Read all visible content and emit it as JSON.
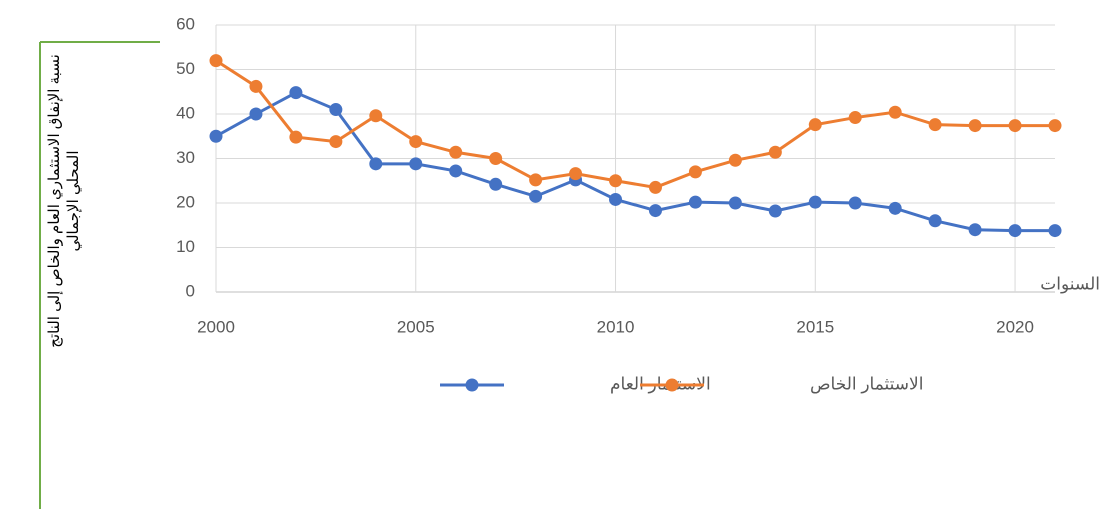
{
  "chart_data": {
    "type": "line",
    "ylabel": "نسبة الإنفاق الاستثماري العام والخاص إلى الناتج المحلي الإجمالي",
    "xlabel": "السنوات",
    "x": [
      2000,
      2001,
      2002,
      2003,
      2004,
      2005,
      2006,
      2007,
      2008,
      2009,
      2010,
      2011,
      2012,
      2013,
      2014,
      2015,
      2016,
      2017,
      2018,
      2019,
      2020,
      2021
    ],
    "series": [
      {
        "name": "الاستثمار العام",
        "color": "#4472c4",
        "values": [
          35,
          40,
          44.8,
          41,
          28.8,
          28.8,
          27.2,
          24.2,
          21.5,
          25.2,
          20.8,
          18.3,
          20.2,
          20,
          18.2,
          20.2,
          20,
          18.8,
          16,
          14,
          13.8,
          13.8
        ]
      },
      {
        "name": "الاستثمار الخاص",
        "color": "#ed7d31",
        "values": [
          52,
          46.2,
          34.8,
          33.8,
          39.6,
          33.8,
          31.4,
          30,
          25.2,
          26.6,
          25,
          23.5,
          27,
          29.6,
          31.4,
          37.6,
          39.2,
          40.4,
          37.6,
          37.4,
          37.4,
          37.4
        ]
      }
    ],
    "xlim": [
      2000,
      2021
    ],
    "xticks": [
      2000,
      2005,
      2010,
      2015,
      2020
    ],
    "ylim": [
      0,
      60
    ],
    "yticks": [
      0,
      10,
      20,
      30,
      40,
      50,
      60
    ],
    "grid": true
  }
}
